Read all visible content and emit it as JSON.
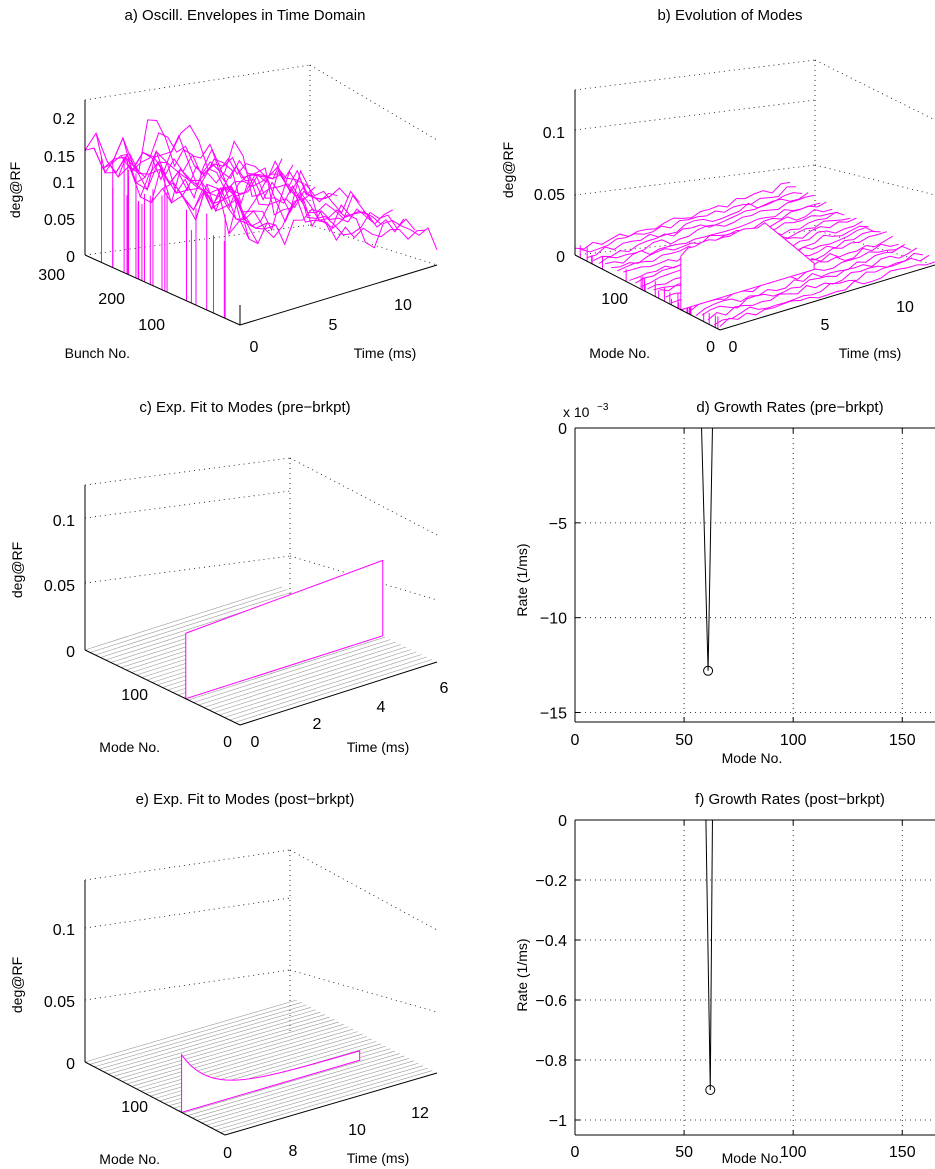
{
  "colors": {
    "mesh": "#ff00ff",
    "axis": "#000000",
    "floor": "#9a9a9a"
  },
  "chart_data": [
    {
      "id": "a",
      "type": "surface",
      "title": "a) Oscill. Envelopes in Time Domain",
      "xlabel": "Time   (ms)",
      "ylabel": "Bunch No.",
      "zlabel": "deg@RF",
      "x_ticks": [
        "0",
        "5",
        "10"
      ],
      "y_ticks": [
        "100",
        "200",
        "300"
      ],
      "z_ticks": [
        "0",
        "0.05",
        "0.1",
        "0.15",
        "0.2"
      ],
      "zlim": [
        0,
        0.23
      ],
      "grid": true
    },
    {
      "id": "b",
      "type": "surface",
      "title": "b) Evolution of Modes",
      "xlabel": "Time (ms)",
      "ylabel": "Mode No.",
      "zlabel": "deg@RF",
      "x_ticks": [
        "0",
        "5",
        "10"
      ],
      "y_ticks": [
        "0",
        "100"
      ],
      "z_ticks": [
        "0",
        "0.05",
        "0.1"
      ],
      "peak_mode": 61,
      "peak_value": 0.1,
      "grid": true
    },
    {
      "id": "c",
      "type": "surface",
      "title": "c) Exp. Fit to Modes (pre−brkpt)",
      "xlabel": "Time (ms)",
      "ylabel": "Mode No.",
      "zlabel": "deg@RF",
      "x_ticks": [
        "0",
        "2",
        "4",
        "6"
      ],
      "y_ticks": [
        "0",
        "100"
      ],
      "z_ticks": [
        "0",
        "0.05",
        "0.1"
      ],
      "peak_mode": 61,
      "peak_start": 0.1,
      "peak_end": 0.115,
      "grid": true
    },
    {
      "id": "d",
      "type": "line",
      "title": "d) Growth Rates (pre−brkpt)",
      "xlabel": "Mode No.",
      "ylabel": "Rate   (1/ms)",
      "exponent_label": "x 10",
      "exponent_power": "−3",
      "x_ticks": [
        "0",
        "50",
        "100",
        "150"
      ],
      "y_ticks": [
        "0",
        "−5",
        "−10",
        "−15"
      ],
      "xlim": [
        0,
        165
      ],
      "ylim": [
        -15.5,
        0
      ],
      "series": [
        {
          "x": [
            58,
            61,
            63
          ],
          "y": [
            0,
            -12.8,
            0
          ]
        }
      ],
      "marker": {
        "x": 61,
        "y": -12.8
      },
      "grid": true
    },
    {
      "id": "e",
      "type": "surface",
      "title": "e) Exp. Fit to Modes (post−brkpt)",
      "xlabel": "Time (ms)",
      "ylabel": "Mode No.",
      "zlabel": "deg@RF",
      "x_ticks": [
        "8",
        "10",
        "12"
      ],
      "y_ticks": [
        "0",
        "100"
      ],
      "z_ticks": [
        "0",
        "0.05",
        "0.1"
      ],
      "peak_mode": 61,
      "peak_start": 0.08,
      "grid": true
    },
    {
      "id": "f",
      "type": "line",
      "title": "f) Growth Rates (post−brkpt)",
      "xlabel": "Mode No.",
      "ylabel": "Rate   (1/ms)",
      "x_ticks": [
        "0",
        "50",
        "100",
        "150"
      ],
      "y_ticks": [
        "0",
        "−0.2",
        "−0.4",
        "−0.6",
        "−0.8",
        "−1"
      ],
      "xlim": [
        0,
        165
      ],
      "ylim": [
        -1.05,
        0
      ],
      "series": [
        {
          "x": [
            60,
            62,
            63
          ],
          "y": [
            0,
            -0.9,
            0
          ]
        }
      ],
      "marker": {
        "x": 62,
        "y": -0.9
      },
      "grid": true
    }
  ]
}
